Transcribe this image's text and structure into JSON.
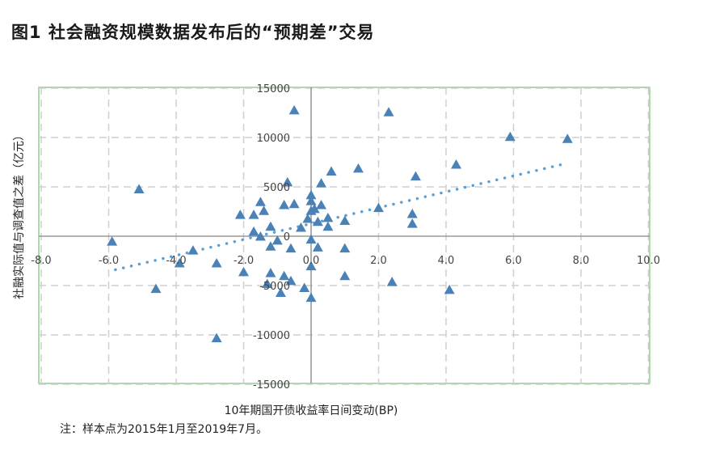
{
  "figure_title": "图1   社会融资规模数据发布后的“预期差”交易",
  "footnote": "注：样本点为2015年1月至2019年7月。",
  "colors": {
    "marker": "#4a82b7",
    "trend": "#5aa0d4",
    "grid": "#cfcfcf",
    "frame": "#8ed08e",
    "axis": "#9a9a9a"
  },
  "chart_data": {
    "type": "scatter",
    "xlabel": "10年期国开债收益率日间变动(BP)",
    "ylabel": "社融实际值与调查值之差（亿元）",
    "xlim": [
      -8,
      10
    ],
    "ylim": [
      -15000,
      15000
    ],
    "x_ticks": [
      "-8.0",
      "-6.0",
      "-4.0",
      "-2.0",
      "0.0",
      "2.0",
      "4.0",
      "6.0",
      "8.0",
      "10.0"
    ],
    "y_ticks": [
      "15000",
      "10000",
      "5000",
      "0",
      "-5000",
      "-10000",
      "-15000"
    ],
    "grid": true,
    "marker": "triangle",
    "trendline": {
      "style": "dotted",
      "x": [
        -5.8,
        7.6
      ],
      "y": [
        -3400,
        7400
      ]
    },
    "points": [
      [
        -5.9,
        -500
      ],
      [
        -5.1,
        4800
      ],
      [
        -4.6,
        -5300
      ],
      [
        -3.9,
        -2700
      ],
      [
        -3.5,
        -1400
      ],
      [
        -2.8,
        -2700
      ],
      [
        -2.8,
        -10300
      ],
      [
        -2.1,
        2200
      ],
      [
        -2.0,
        -3600
      ],
      [
        -1.7,
        2200
      ],
      [
        -1.7,
        500
      ],
      [
        -1.5,
        3500
      ],
      [
        -1.5,
        0
      ],
      [
        -1.4,
        2600
      ],
      [
        -1.3,
        -4800
      ],
      [
        -1.2,
        -3700
      ],
      [
        -1.2,
        -1000
      ],
      [
        -1.2,
        1000
      ],
      [
        -1.0,
        -400
      ],
      [
        -0.9,
        -5700
      ],
      [
        -0.8,
        -4000
      ],
      [
        -0.8,
        3200
      ],
      [
        -0.7,
        5500
      ],
      [
        -0.6,
        -4500
      ],
      [
        -0.6,
        -1200
      ],
      [
        -0.5,
        12800
      ],
      [
        -0.5,
        3300
      ],
      [
        -0.3,
        900
      ],
      [
        -0.2,
        -5200
      ],
      [
        -0.1,
        1800
      ],
      [
        0.0,
        4200
      ],
      [
        0.0,
        3600
      ],
      [
        0.0,
        -300
      ],
      [
        0.0,
        -3000
      ],
      [
        0.0,
        2600
      ],
      [
        0.0,
        -6200
      ],
      [
        0.1,
        2800
      ],
      [
        0.2,
        1500
      ],
      [
        0.2,
        -1100
      ],
      [
        0.3,
        3200
      ],
      [
        0.3,
        5400
      ],
      [
        0.5,
        1900
      ],
      [
        0.5,
        1000
      ],
      [
        0.6,
        6600
      ],
      [
        1.0,
        -1200
      ],
      [
        1.0,
        -4000
      ],
      [
        1.0,
        1600
      ],
      [
        1.4,
        6900
      ],
      [
        2.0,
        2900
      ],
      [
        2.3,
        12600
      ],
      [
        2.4,
        -4600
      ],
      [
        3.0,
        2300
      ],
      [
        3.0,
        1300
      ],
      [
        3.1,
        6100
      ],
      [
        4.1,
        -5400
      ],
      [
        4.3,
        7300
      ],
      [
        5.9,
        10100
      ],
      [
        7.6,
        9900
      ]
    ]
  }
}
